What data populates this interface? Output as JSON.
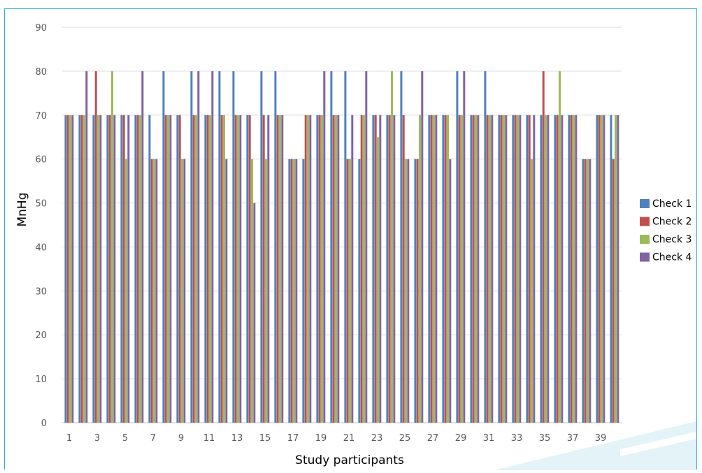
{
  "caption": "",
  "chart_data": {
    "type": "bar",
    "title": "",
    "xlabel": "Study participants",
    "ylabel": "MnHg",
    "ylim": [
      0,
      90
    ],
    "yticks": [
      0,
      10,
      20,
      30,
      40,
      50,
      60,
      70,
      80,
      90
    ],
    "grid": true,
    "legend_position": "right",
    "categories": [
      1,
      2,
      3,
      4,
      5,
      6,
      7,
      8,
      9,
      10,
      11,
      12,
      13,
      14,
      15,
      16,
      17,
      18,
      19,
      20,
      21,
      22,
      23,
      24,
      25,
      26,
      27,
      28,
      29,
      30,
      31,
      32,
      33,
      34,
      35,
      36,
      37,
      38,
      39,
      40
    ],
    "x_tick_labels": [
      "1",
      "3",
      "5",
      "7",
      "9",
      "11",
      "13",
      "15",
      "17",
      "19",
      "21",
      "23",
      "25",
      "27",
      "29",
      "31",
      "33",
      "35",
      "37",
      "39"
    ],
    "series": [
      {
        "name": "Check 1",
        "color": "#4f81bd",
        "values": [
          70,
          70,
          70,
          70,
          70,
          70,
          70,
          80,
          70,
          80,
          70,
          80,
          80,
          70,
          80,
          80,
          60,
          60,
          70,
          80,
          80,
          60,
          70,
          70,
          80,
          60,
          70,
          70,
          80,
          70,
          80,
          70,
          70,
          70,
          70,
          70,
          70,
          60,
          70,
          70
        ]
      },
      {
        "name": "Check 2",
        "color": "#c0504d",
        "values": [
          70,
          70,
          80,
          70,
          70,
          70,
          60,
          70,
          70,
          70,
          70,
          70,
          70,
          70,
          70,
          70,
          60,
          70,
          70,
          70,
          60,
          70,
          70,
          70,
          70,
          60,
          70,
          70,
          70,
          70,
          70,
          70,
          70,
          70,
          80,
          70,
          70,
          60,
          70,
          60
        ]
      },
      {
        "name": "Check 3",
        "color": "#9bbb59",
        "values": [
          70,
          70,
          70,
          80,
          60,
          70,
          60,
          70,
          60,
          70,
          70,
          70,
          70,
          60,
          60,
          70,
          60,
          70,
          70,
          70,
          60,
          70,
          65,
          80,
          60,
          70,
          70,
          70,
          70,
          70,
          70,
          70,
          70,
          60,
          70,
          80,
          70,
          60,
          70,
          70
        ]
      },
      {
        "name": "Check 4",
        "color": "#8064a2",
        "values": [
          70,
          80,
          70,
          70,
          70,
          80,
          60,
          70,
          60,
          80,
          80,
          60,
          70,
          50,
          70,
          70,
          60,
          70,
          80,
          70,
          70,
          80,
          70,
          70,
          60,
          80,
          70,
          60,
          80,
          70,
          70,
          70,
          70,
          70,
          70,
          70,
          70,
          60,
          70,
          70
        ]
      }
    ]
  }
}
